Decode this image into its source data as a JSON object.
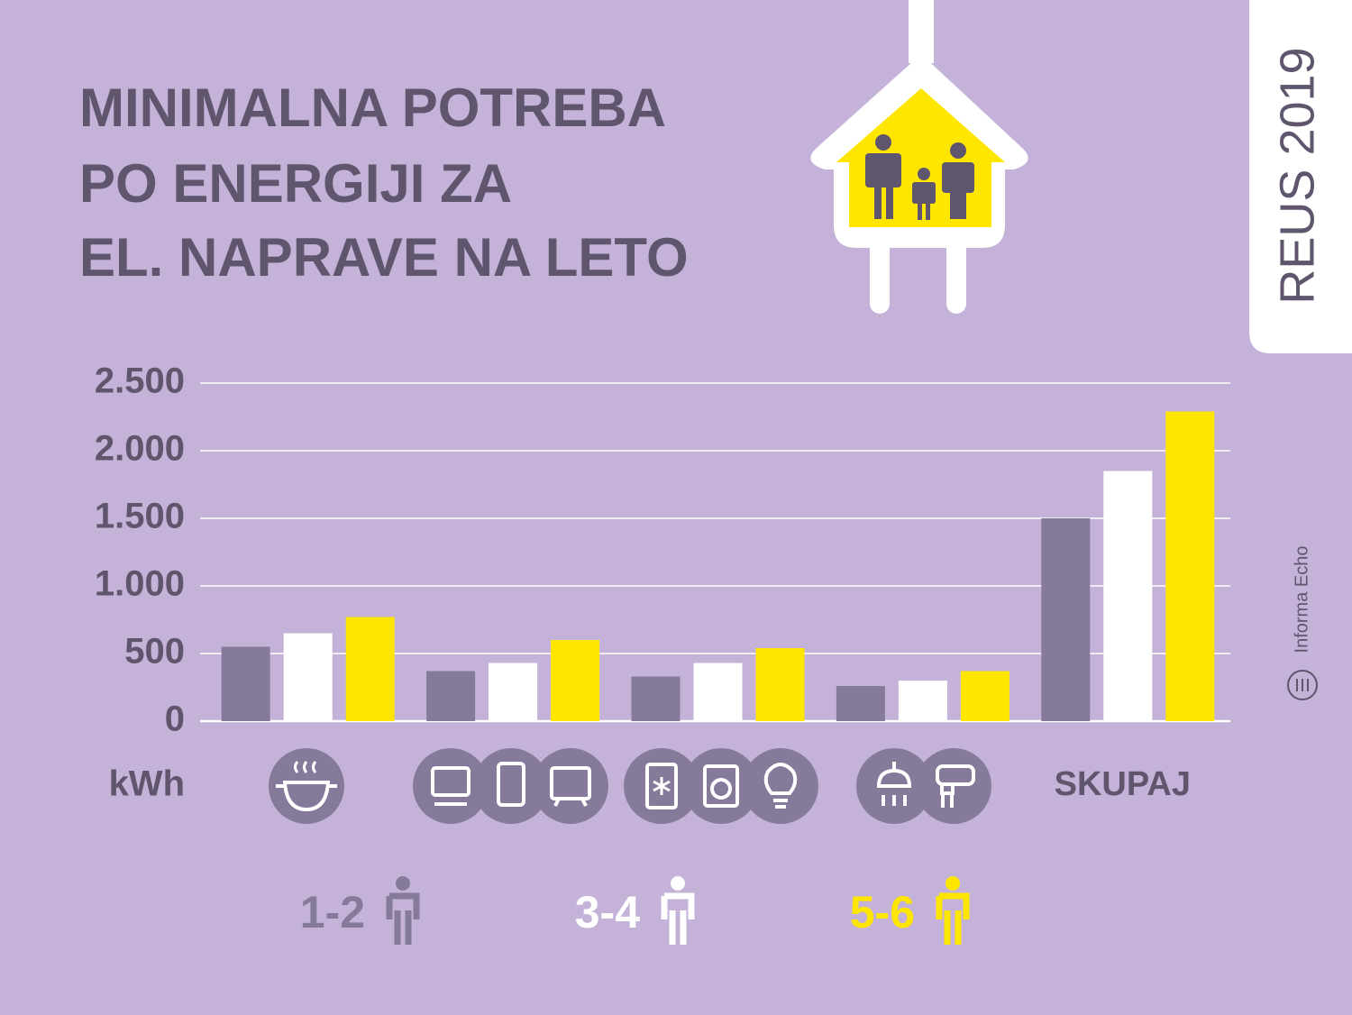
{
  "chart_data": {
    "type": "bar",
    "title": [
      "MINIMALNA POTREBA",
      "PO ENERGIJI ZA",
      "EL. NAPRAVE NA LETO"
    ],
    "badge": "REUS 2019",
    "source": "Informa Echo",
    "y_unit": "kWh",
    "categories": [
      null,
      null,
      null,
      null,
      "SKUPAJ"
    ],
    "series": [
      {
        "name": "1-2",
        "color": "#857a9a",
        "values": [
          550,
          370,
          330,
          260,
          1500
        ]
      },
      {
        "name": "3-4",
        "color": "#ffffff",
        "values": [
          650,
          430,
          430,
          300,
          1850
        ]
      },
      {
        "name": "5-6",
        "color": "#ffe600",
        "values": [
          770,
          600,
          540,
          370,
          2290
        ]
      }
    ],
    "ylim": [
      0,
      2500
    ],
    "yticks": [
      0,
      500,
      {
        "value": 1000,
        "label": "1.000"
      },
      {
        "value": 1500,
        "label": "1.500"
      },
      {
        "value": 2000,
        "label": "2.000"
      },
      {
        "value": 2500,
        "label": "2.500"
      }
    ],
    "grid": true
  }
}
